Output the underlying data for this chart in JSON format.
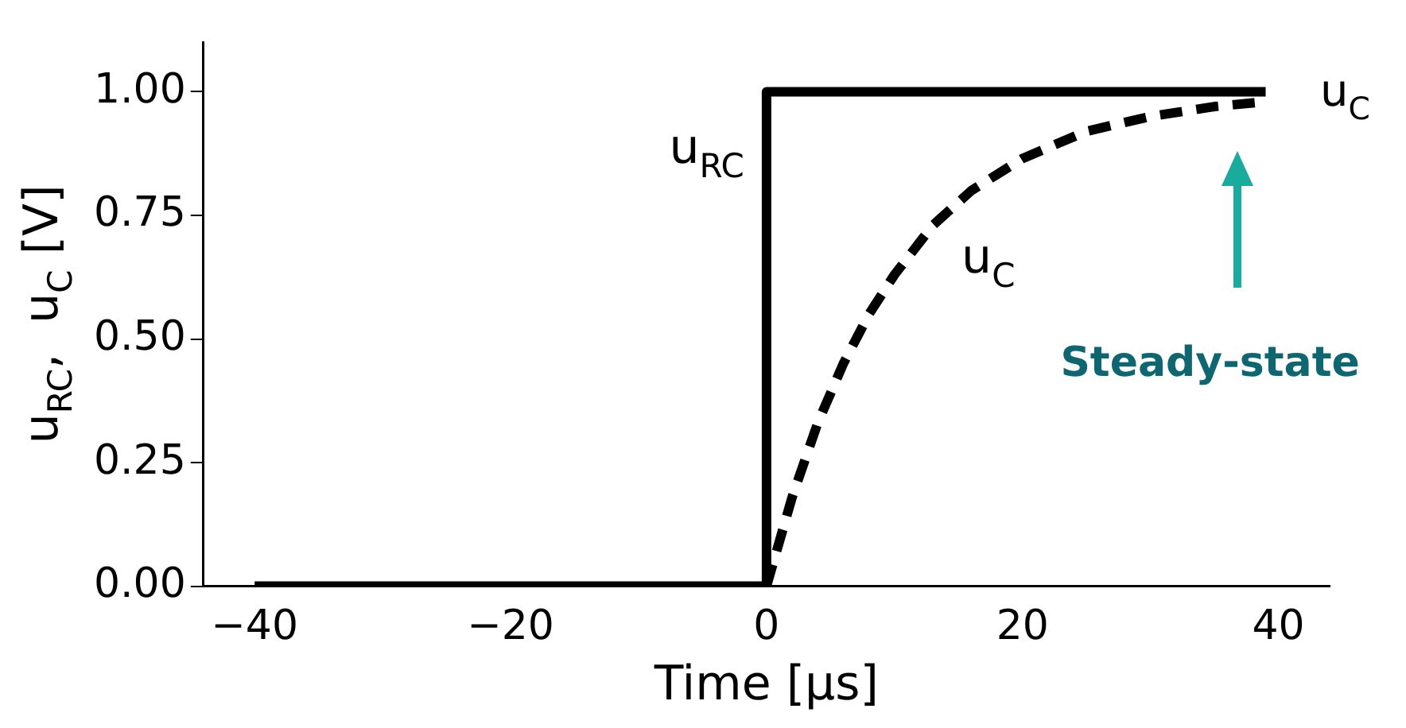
{
  "chart_data": {
    "type": "line",
    "xlabel": "Time [μs]",
    "ylabel": "u$_{RC}$,  u$_{C}$ [V]",
    "series": [
      {
        "name": "u$_{RC}$",
        "type": "step",
        "color": "#000000",
        "line_style": "solid",
        "x": [
          -40,
          0,
          39
        ],
        "values": [
          0,
          1,
          1
        ]
      },
      {
        "name": "u$_{C}$",
        "color": "#000000",
        "line_style": "dashed",
        "x": [
          0,
          2,
          4,
          6,
          8,
          10,
          13,
          16,
          20,
          25,
          30,
          35,
          39
        ],
        "values": [
          0,
          0.18,
          0.33,
          0.45,
          0.55,
          0.63,
          0.73,
          0.8,
          0.865,
          0.92,
          0.95,
          0.97,
          0.98
        ]
      }
    ],
    "annotations": [
      "u$_{C}$",
      "Steady-state"
    ],
    "xlim": [
      -44,
      44
    ],
    "xticks": [
      -40,
      -20,
      0,
      20,
      40
    ],
    "ylim": [
      0,
      1.1
    ],
    "yticks": [
      {
        "value": 0,
        "label": "0.00"
      },
      {
        "value": 0.25,
        "label": "0.25"
      },
      {
        "value": 0.5,
        "label": "0.50"
      },
      {
        "value": 0.75,
        "label": "0.75"
      },
      {
        "value": 1,
        "label": "1.00"
      }
    ],
    "grid": false,
    "legend": false,
    "marker": "none"
  }
}
